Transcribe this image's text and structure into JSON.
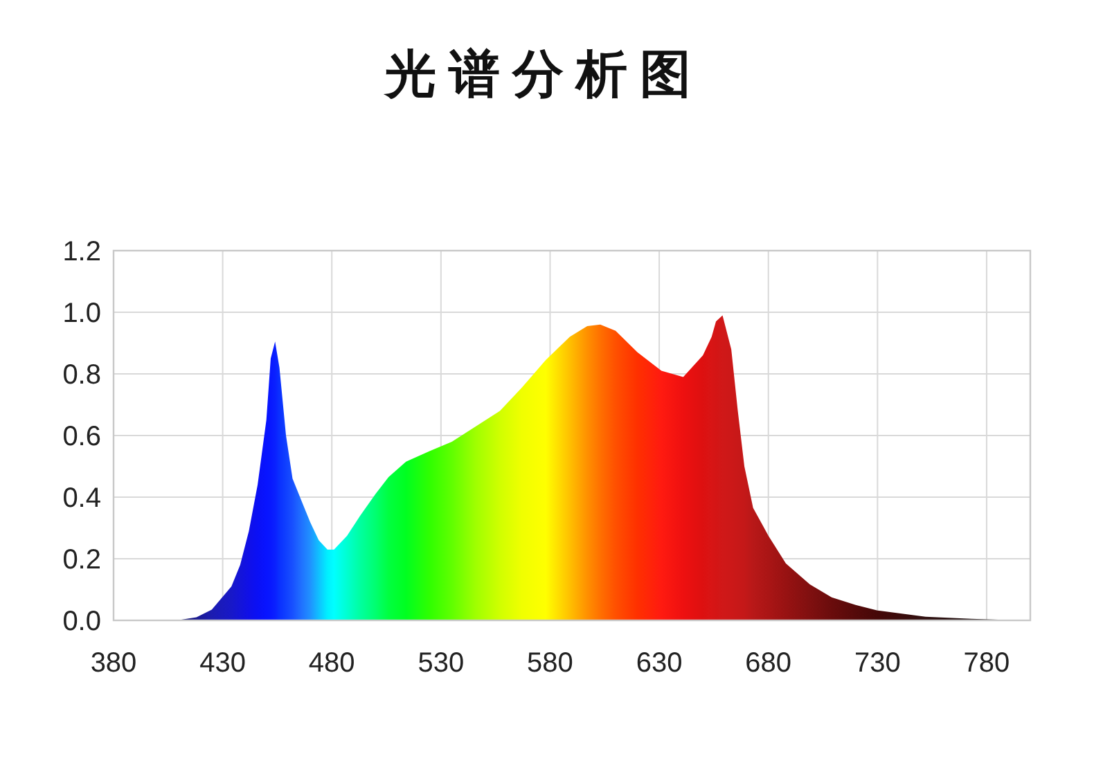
{
  "chart_data": {
    "type": "area",
    "title": "光谱分析图",
    "x": [
      409,
      418,
      425,
      434,
      438,
      442,
      446,
      450,
      452,
      454,
      456,
      459,
      462,
      466,
      470,
      474,
      478,
      481,
      487,
      493,
      500,
      506,
      514,
      525,
      535,
      546,
      557,
      567,
      578,
      589,
      597,
      603,
      610,
      620,
      631,
      641,
      650,
      654,
      656,
      659,
      663,
      666,
      669,
      673,
      680,
      688,
      699,
      709,
      720,
      730,
      752,
      773,
      795
    ],
    "values": [
      0,
      0.01,
      0.035,
      0.11,
      0.18,
      0.29,
      0.44,
      0.65,
      0.85,
      0.905,
      0.82,
      0.6,
      0.46,
      0.39,
      0.32,
      0.26,
      0.23,
      0.23,
      0.275,
      0.34,
      0.41,
      0.465,
      0.515,
      0.55,
      0.58,
      0.63,
      0.68,
      0.755,
      0.845,
      0.92,
      0.955,
      0.96,
      0.94,
      0.87,
      0.81,
      0.79,
      0.86,
      0.92,
      0.97,
      0.99,
      0.88,
      0.68,
      0.5,
      0.365,
      0.275,
      0.185,
      0.117,
      0.075,
      0.05,
      0.032,
      0.012,
      0.005,
      0
    ],
    "colors": [
      "#101060",
      "#1a1a90",
      "#1c1cb0",
      "#1818c8",
      "#1414d8",
      "#1010e8",
      "#0a10f5",
      "#0814ff",
      "#0818ff",
      "#0a20ff",
      "#0a30ff",
      "#1040ff",
      "#1850ff",
      "#2070ff",
      "#2090ff",
      "#10c0ff",
      "#00f0ff",
      "#00ffff",
      "#00ffd0",
      "#00ffa0",
      "#00ff70",
      "#00ff40",
      "#00ff20",
      "#30ff00",
      "#60ff00",
      "#a0ff00",
      "#d0ff00",
      "#f0ff00",
      "#ffff00",
      "#ffc000",
      "#ff9000",
      "#ff7000",
      "#ff5000",
      "#ff3000",
      "#ff1a10",
      "#ee1010",
      "#dd1010",
      "#d81515",
      "#d41515",
      "#d01818",
      "#cc1818",
      "#c81818",
      "#c41818",
      "#b81818",
      "#aa1515",
      "#981212",
      "#801010",
      "#6a0c0c",
      "#550a0a",
      "#450808",
      "#301010",
      "#201010",
      "#101010"
    ],
    "xlim": [
      380,
      800
    ],
    "xticks": [
      380,
      430,
      480,
      530,
      580,
      630,
      680,
      730,
      780
    ],
    "ylim": [
      0,
      1.2
    ],
    "yticks": [
      {
        "value": 0,
        "label": "0.0"
      },
      {
        "value": 0.2,
        "label": "0.2"
      },
      {
        "value": 0.4,
        "label": "0.4"
      },
      {
        "value": 0.6,
        "label": "0.6"
      },
      {
        "value": 0.8,
        "label": "0.8"
      },
      {
        "value": 1,
        "label": "1.0"
      },
      {
        "value": 1.2,
        "label": "1.2"
      }
    ],
    "grid": true
  }
}
